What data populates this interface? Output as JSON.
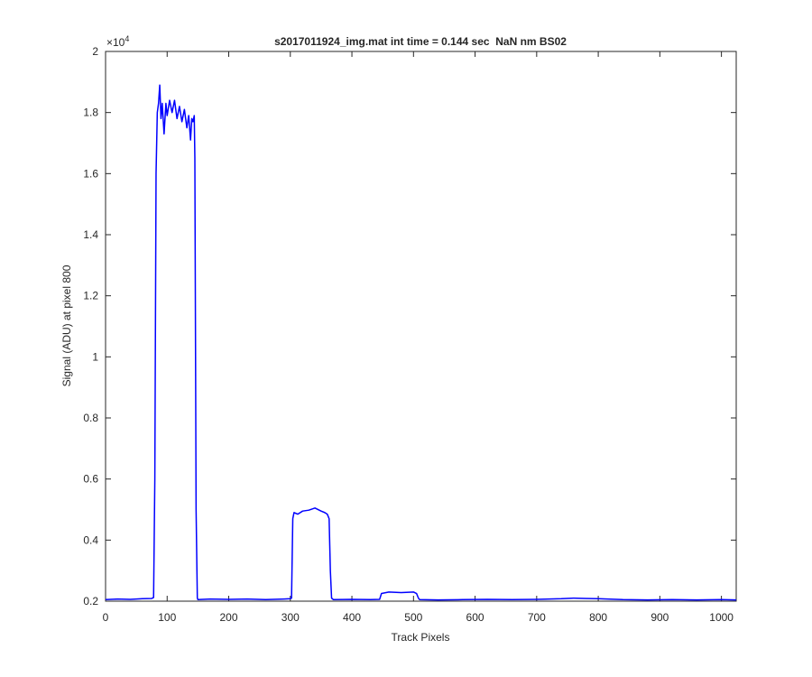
{
  "chart_data": {
    "type": "line",
    "title": "s2017011924_img.mat int time = 0.144 sec  NaN nm BS02",
    "x_label": "Track Pixels",
    "y_label": "Signal (ADU) at pixel 800",
    "y_multiplier_base": "×10",
    "y_multiplier_exponent": "4",
    "color": "#0000ff",
    "x": [
      0,
      20,
      40,
      60,
      75,
      78,
      80,
      82,
      84,
      86,
      88,
      90,
      92,
      95,
      98,
      100,
      104,
      108,
      112,
      116,
      120,
      124,
      128,
      132,
      135,
      138,
      140,
      142,
      144,
      145,
      147,
      149,
      150,
      170,
      200,
      230,
      260,
      290,
      300,
      302,
      304,
      306,
      312,
      320,
      330,
      340,
      350,
      356,
      360,
      363,
      365,
      367,
      370,
      400,
      430,
      445,
      448,
      460,
      480,
      500,
      505,
      508,
      510,
      540,
      580,
      620,
      660,
      700,
      740,
      760,
      780,
      800,
      840,
      880,
      920,
      960,
      1000,
      1024
    ],
    "values": [
      2050,
      2070,
      2060,
      2080,
      2090,
      2120,
      6000,
      16000,
      18000,
      18300,
      18900,
      17800,
      18300,
      17300,
      18300,
      17900,
      18400,
      18000,
      18400,
      17800,
      18200,
      17700,
      18100,
      17500,
      17900,
      17100,
      17800,
      17700,
      17900,
      16500,
      5000,
      2100,
      2050,
      2070,
      2060,
      2070,
      2050,
      2070,
      2080,
      2100,
      4700,
      4900,
      4850,
      4950,
      4980,
      5050,
      4950,
      4900,
      4850,
      4700,
      3000,
      2100,
      2050,
      2060,
      2050,
      2060,
      2250,
      2300,
      2280,
      2300,
      2250,
      2100,
      2050,
      2040,
      2050,
      2060,
      2050,
      2060,
      2080,
      2100,
      2090,
      2080,
      2050,
      2040,
      2050,
      2040,
      2050,
      2040
    ],
    "xlim": [
      0,
      1024
    ],
    "ylim": [
      2000,
      20000
    ],
    "xticks": [
      0,
      100,
      200,
      300,
      400,
      500,
      600,
      700,
      800,
      900,
      1000
    ],
    "yticks": [
      {
        "value": 2000,
        "label": "0.2"
      },
      {
        "value": 4000,
        "label": "0.4"
      },
      {
        "value": 6000,
        "label": "0.6"
      },
      {
        "value": 8000,
        "label": "0.8"
      },
      {
        "value": 10000,
        "label": "1"
      },
      {
        "value": 12000,
        "label": "1.2"
      },
      {
        "value": 14000,
        "label": "1.4"
      },
      {
        "value": 16000,
        "label": "1.6"
      },
      {
        "value": 18000,
        "label": "1.8"
      },
      {
        "value": 20000,
        "label": "2"
      }
    ]
  }
}
